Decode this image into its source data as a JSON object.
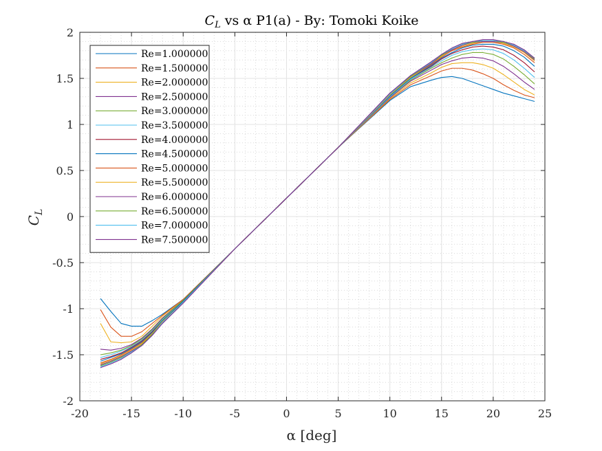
{
  "chart_data": {
    "type": "line",
    "title": "C_L vs α P1(a) - By: Tomoki Koike",
    "title_parts": {
      "main": "C",
      "sub": "L",
      "rest": " vs α P1(a) - By: Tomoki Koike"
    },
    "xlabel": "α [deg]",
    "ylabel_parts": {
      "main": "C",
      "sub": "L"
    },
    "xlim": [
      -20,
      25
    ],
    "ylim": [
      -2,
      2
    ],
    "xticks": [
      -20,
      -15,
      -10,
      -5,
      0,
      5,
      10,
      15,
      20,
      25
    ],
    "yticks": [
      -2,
      -1.5,
      -1,
      -0.5,
      0,
      0.5,
      1,
      1.5,
      2
    ],
    "xtick_labels": [
      "-20",
      "-15",
      "-10",
      "-5",
      "0",
      "5",
      "10",
      "15",
      "20",
      "25"
    ],
    "ytick_labels": [
      "-2",
      "-1.5",
      "-1",
      "-0.5",
      "0",
      "0.5",
      "1",
      "1.5",
      "2"
    ],
    "grid": true,
    "minor_grid": true,
    "legend_position": "top-left",
    "x": [
      -18,
      -17,
      -16,
      -15,
      -14,
      -13,
      -12,
      -10,
      -5,
      0,
      5,
      10,
      12,
      14,
      15,
      16,
      17,
      18,
      19,
      20,
      21,
      22,
      23,
      24
    ],
    "series": [
      {
        "name": "Re=1.000000",
        "color": "#0072BD",
        "values": [
          -0.89,
          -1.03,
          -1.16,
          -1.19,
          -1.19,
          -1.13,
          -1.06,
          -0.9,
          -0.35,
          0.2,
          0.75,
          1.26,
          1.41,
          1.48,
          1.51,
          1.52,
          1.5,
          1.46,
          1.42,
          1.38,
          1.34,
          1.31,
          1.28,
          1.25
        ]
      },
      {
        "name": "Re=1.500000",
        "color": "#D95319",
        "values": [
          -1.01,
          -1.2,
          -1.3,
          -1.3,
          -1.25,
          -1.16,
          -1.07,
          -0.9,
          -0.35,
          0.2,
          0.75,
          1.27,
          1.43,
          1.53,
          1.58,
          1.61,
          1.61,
          1.59,
          1.55,
          1.5,
          1.43,
          1.37,
          1.32,
          1.29
        ]
      },
      {
        "name": "Re=2.000000",
        "color": "#EDB120",
        "values": [
          -1.16,
          -1.36,
          -1.37,
          -1.36,
          -1.3,
          -1.19,
          -1.08,
          -0.91,
          -0.35,
          0.2,
          0.75,
          1.28,
          1.45,
          1.56,
          1.62,
          1.66,
          1.67,
          1.67,
          1.65,
          1.61,
          1.54,
          1.46,
          1.38,
          1.32
        ]
      },
      {
        "name": "Re=2.500000",
        "color": "#7E2F8E",
        "values": [
          -1.44,
          -1.45,
          -1.43,
          -1.39,
          -1.32,
          -1.22,
          -1.1,
          -0.91,
          -0.35,
          0.2,
          0.75,
          1.29,
          1.47,
          1.59,
          1.65,
          1.69,
          1.72,
          1.73,
          1.72,
          1.69,
          1.63,
          1.55,
          1.46,
          1.38
        ]
      },
      {
        "name": "Re=3.000000",
        "color": "#77AC30",
        "values": [
          -1.5,
          -1.48,
          -1.45,
          -1.4,
          -1.33,
          -1.23,
          -1.11,
          -0.91,
          -0.35,
          0.2,
          0.75,
          1.3,
          1.48,
          1.61,
          1.67,
          1.72,
          1.76,
          1.78,
          1.78,
          1.76,
          1.71,
          1.63,
          1.54,
          1.44
        ]
      },
      {
        "name": "Re=3.500000",
        "color": "#4DBEEE",
        "values": [
          -1.53,
          -1.5,
          -1.46,
          -1.41,
          -1.34,
          -1.24,
          -1.12,
          -0.92,
          -0.35,
          0.2,
          0.75,
          1.3,
          1.49,
          1.62,
          1.69,
          1.75,
          1.79,
          1.81,
          1.82,
          1.81,
          1.77,
          1.7,
          1.61,
          1.51
        ]
      },
      {
        "name": "Re=4.000000",
        "color": "#A2142F",
        "values": [
          -1.55,
          -1.52,
          -1.48,
          -1.42,
          -1.35,
          -1.25,
          -1.13,
          -0.92,
          -0.35,
          0.2,
          0.75,
          1.31,
          1.5,
          1.63,
          1.71,
          1.77,
          1.81,
          1.84,
          1.85,
          1.84,
          1.81,
          1.75,
          1.67,
          1.57
        ]
      },
      {
        "name": "Re=4.500000",
        "color": "#0072BD",
        "values": [
          -1.57,
          -1.53,
          -1.49,
          -1.43,
          -1.36,
          -1.26,
          -1.13,
          -0.92,
          -0.35,
          0.2,
          0.75,
          1.31,
          1.5,
          1.64,
          1.72,
          1.78,
          1.83,
          1.86,
          1.87,
          1.87,
          1.85,
          1.8,
          1.73,
          1.63
        ]
      },
      {
        "name": "Re=5.000000",
        "color": "#D95319",
        "values": [
          -1.59,
          -1.55,
          -1.5,
          -1.44,
          -1.37,
          -1.27,
          -1.14,
          -0.93,
          -0.35,
          0.2,
          0.75,
          1.32,
          1.51,
          1.65,
          1.73,
          1.8,
          1.84,
          1.87,
          1.89,
          1.89,
          1.87,
          1.83,
          1.76,
          1.67
        ]
      },
      {
        "name": "Re=5.500000",
        "color": "#EDB120",
        "values": [
          -1.6,
          -1.56,
          -1.51,
          -1.45,
          -1.38,
          -1.27,
          -1.14,
          -0.93,
          -0.35,
          0.2,
          0.75,
          1.32,
          1.51,
          1.66,
          1.74,
          1.81,
          1.85,
          1.88,
          1.9,
          1.9,
          1.88,
          1.84,
          1.78,
          1.69
        ]
      },
      {
        "name": "Re=6.000000",
        "color": "#7E2F8E",
        "values": [
          -1.61,
          -1.57,
          -1.52,
          -1.46,
          -1.39,
          -1.28,
          -1.15,
          -0.93,
          -0.35,
          0.2,
          0.75,
          1.33,
          1.52,
          1.66,
          1.75,
          1.81,
          1.86,
          1.89,
          1.9,
          1.9,
          1.89,
          1.85,
          1.79,
          1.7
        ]
      },
      {
        "name": "Re=6.500000",
        "color": "#77AC30",
        "values": [
          -1.62,
          -1.58,
          -1.53,
          -1.47,
          -1.39,
          -1.28,
          -1.15,
          -0.93,
          -0.35,
          0.2,
          0.75,
          1.33,
          1.52,
          1.67,
          1.75,
          1.82,
          1.87,
          1.89,
          1.91,
          1.91,
          1.89,
          1.86,
          1.8,
          1.71
        ]
      },
      {
        "name": "Re=7.000000",
        "color": "#4DBEEE",
        "values": [
          -1.63,
          -1.59,
          -1.54,
          -1.47,
          -1.4,
          -1.29,
          -1.15,
          -0.93,
          -0.35,
          0.2,
          0.75,
          1.33,
          1.53,
          1.67,
          1.76,
          1.82,
          1.87,
          1.9,
          1.91,
          1.91,
          1.9,
          1.86,
          1.8,
          1.72
        ]
      },
      {
        "name": "Re=7.500000",
        "color": "#7E2F8E",
        "values": [
          -1.64,
          -1.6,
          -1.55,
          -1.48,
          -1.4,
          -1.29,
          -1.16,
          -0.94,
          -0.35,
          0.2,
          0.75,
          1.34,
          1.53,
          1.68,
          1.76,
          1.83,
          1.88,
          1.9,
          1.92,
          1.92,
          1.9,
          1.87,
          1.81,
          1.72
        ]
      }
    ]
  }
}
